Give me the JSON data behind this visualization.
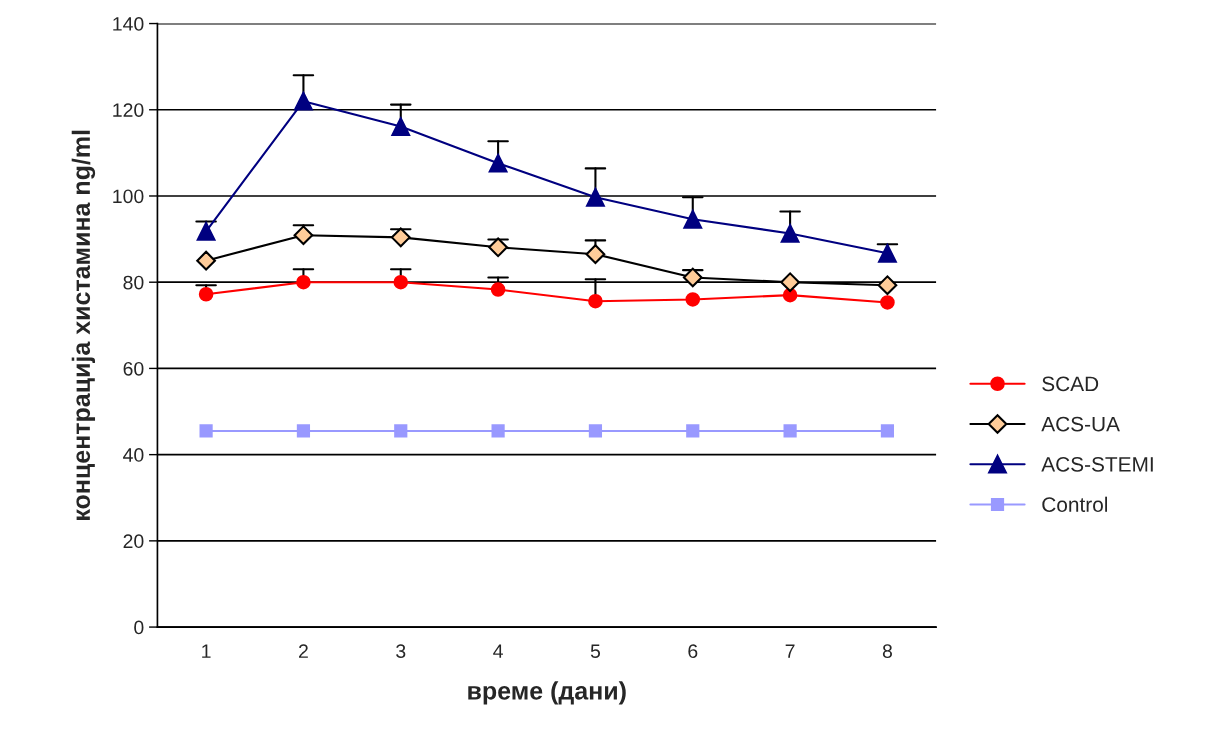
{
  "chart_data": {
    "type": "line",
    "xlabel": "време (дани)",
    "ylabel": "концентрација хистамина ng/ml",
    "categories": [
      "1",
      "2",
      "3",
      "4",
      "5",
      "6",
      "7",
      "8"
    ],
    "series": [
      {
        "name": "SCAD",
        "color": "#ff0000",
        "marker": "circle",
        "values": [
          77.2,
          80,
          80,
          78.3,
          75.6,
          76,
          77,
          75.3
        ],
        "errors": [
          [
            77.2,
            79.3
          ],
          [
            80,
            83
          ],
          [
            80,
            83
          ],
          [
            78.3,
            81.1
          ],
          [
            75.6,
            80.7
          ],
          null,
          null,
          null
        ]
      },
      {
        "name": "ACS-UA",
        "color": "#000000",
        "marker": "diamond",
        "values": [
          85,
          90.9,
          90.4,
          88.1,
          86.5,
          81.1,
          80,
          79.3
        ],
        "errors": [
          null,
          [
            90.9,
            93.2
          ],
          [
            90.4,
            92.3
          ],
          [
            88.1,
            89.9
          ],
          [
            86.5,
            89.7
          ],
          [
            81.1,
            82.8
          ],
          null,
          null
        ]
      },
      {
        "name": "ACS-STEMI",
        "color": "#000080",
        "marker": "triangle",
        "values": [
          91.8,
          122,
          116.1,
          107.6,
          99.7,
          94.6,
          91.3,
          86.7
        ],
        "errors": [
          [
            91.8,
            94.1
          ],
          [
            122,
            128
          ],
          [
            116.1,
            121.2
          ],
          [
            107.6,
            112.7
          ],
          [
            99.7,
            106.4
          ],
          [
            94.6,
            99.7
          ],
          [
            91.3,
            96.4
          ],
          [
            86.7,
            88.8
          ]
        ]
      },
      {
        "name": "Control",
        "color": "#9999ff",
        "marker": "square",
        "values": [
          45.5,
          45.5,
          45.5,
          45.5,
          45.5,
          45.5,
          45.5,
          45.5
        ]
      }
    ],
    "ylim": [
      0,
      140
    ],
    "yticks": [
      0,
      20,
      40,
      60,
      80,
      100,
      120,
      140
    ],
    "grid": "y",
    "legend": "right"
  }
}
